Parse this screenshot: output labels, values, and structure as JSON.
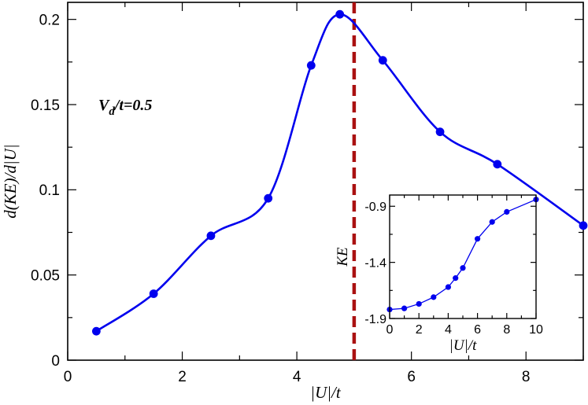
{
  "chart_data": [
    {
      "type": "line",
      "xlabel": "|U|/t",
      "ylabel": "d(KE)/d|U|",
      "xlim": [
        0,
        9
      ],
      "ylim": [
        0,
        0.21
      ],
      "xticks": [
        0,
        2,
        4,
        6,
        8
      ],
      "xtick_labels": [
        "0",
        "2",
        "4",
        "6",
        "8"
      ],
      "yticks": [
        0,
        0.05,
        0.1,
        0.15,
        0.2
      ],
      "ytick_labels": [
        "0",
        "0.05",
        "0.1",
        "0.15",
        "0.2"
      ],
      "annotation": "V_d/t=0.5",
      "vline": {
        "x": 5.0,
        "color": "#aa1111",
        "style": "dashed"
      },
      "series": [
        {
          "color": "#0000ee",
          "x": [
            0.5,
            1.5,
            2.5,
            3.5,
            4.25,
            4.75,
            5.5,
            6.5,
            7.5,
            9.0
          ],
          "y": [
            0.017,
            0.039,
            0.073,
            0.095,
            0.173,
            0.203,
            0.176,
            0.134,
            0.115,
            0.079
          ]
        }
      ]
    },
    {
      "type": "line",
      "inset": true,
      "xlabel": "|U|/t",
      "ylabel": "KE",
      "xlim": [
        0,
        10
      ],
      "ylim": [
        -1.9,
        -0.8
      ],
      "xticks": [
        0,
        2,
        4,
        6,
        8,
        10
      ],
      "xtick_labels": [
        "0",
        "2",
        "4",
        "6",
        "8",
        "10"
      ],
      "yticks": [
        -1.9,
        -1.4,
        -0.9
      ],
      "ytick_labels": [
        "-1.9",
        "-1.4",
        "-0.9"
      ],
      "series": [
        {
          "color": "#0000ee",
          "x": [
            0,
            1,
            2,
            3,
            4,
            4.5,
            5,
            6,
            7,
            8,
            10
          ],
          "y": [
            -1.82,
            -1.81,
            -1.77,
            -1.71,
            -1.62,
            -1.54,
            -1.45,
            -1.19,
            -1.04,
            -0.95,
            -0.84
          ]
        }
      ]
    }
  ]
}
